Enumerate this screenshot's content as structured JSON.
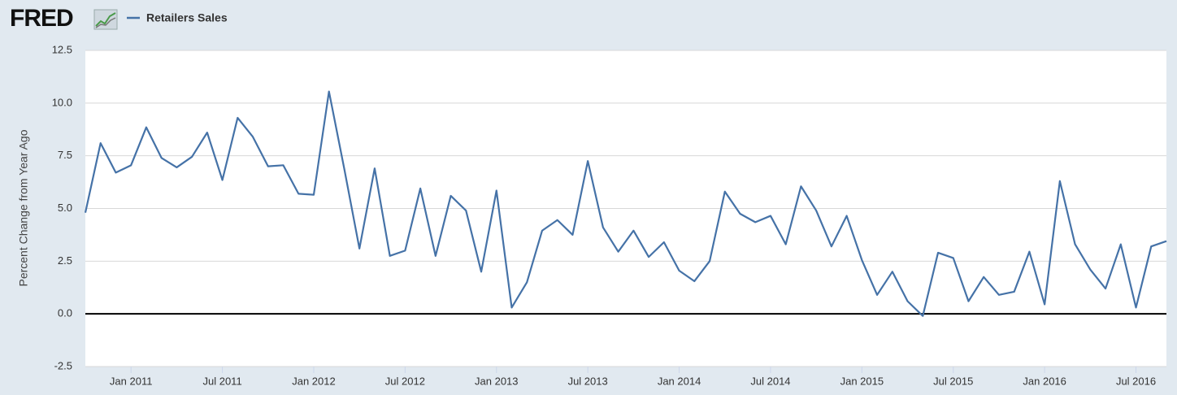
{
  "header": {
    "logo": "FRED"
  },
  "chart_data": {
    "type": "line",
    "y_label": "Percent Change from Year Ago",
    "x": [
      "2010-10",
      "2010-11",
      "2010-12",
      "2011-01",
      "2011-02",
      "2011-03",
      "2011-04",
      "2011-05",
      "2011-06",
      "2011-07",
      "2011-08",
      "2011-09",
      "2011-10",
      "2011-11",
      "2011-12",
      "2012-01",
      "2012-02",
      "2012-03",
      "2012-04",
      "2012-05",
      "2012-06",
      "2012-07",
      "2012-08",
      "2012-09",
      "2012-10",
      "2012-11",
      "2012-12",
      "2013-01",
      "2013-02",
      "2013-03",
      "2013-04",
      "2013-05",
      "2013-06",
      "2013-07",
      "2013-08",
      "2013-09",
      "2013-10",
      "2013-11",
      "2013-12",
      "2014-01",
      "2014-02",
      "2014-03",
      "2014-04",
      "2014-05",
      "2014-06",
      "2014-07",
      "2014-08",
      "2014-09",
      "2014-10",
      "2014-11",
      "2014-12",
      "2015-01",
      "2015-02",
      "2015-03",
      "2015-04",
      "2015-05",
      "2015-06",
      "2015-07",
      "2015-08",
      "2015-09",
      "2015-10",
      "2015-11",
      "2015-12",
      "2016-01",
      "2016-02",
      "2016-03",
      "2016-04",
      "2016-05",
      "2016-06",
      "2016-07",
      "2016-08",
      "2016-09"
    ],
    "series": [
      {
        "name": "Retailers Sales",
        "color": "#4572a7",
        "values": [
          4.8,
          8.1,
          6.7,
          7.05,
          8.85,
          7.4,
          6.95,
          7.45,
          8.6,
          6.35,
          9.3,
          8.4,
          7.0,
          7.05,
          5.7,
          5.65,
          10.55,
          6.9,
          3.1,
          6.9,
          2.75,
          3.0,
          5.95,
          2.75,
          5.6,
          4.9,
          2.0,
          5.85,
          0.3,
          1.5,
          3.95,
          4.45,
          3.75,
          7.25,
          4.1,
          2.95,
          3.95,
          2.7,
          3.4,
          2.05,
          1.55,
          2.5,
          5.8,
          4.75,
          4.35,
          4.65,
          3.3,
          6.05,
          4.9,
          3.2,
          4.65,
          2.55,
          0.9,
          2.0,
          0.6,
          -0.1,
          2.9,
          2.65,
          0.6,
          1.75,
          0.9,
          1.05,
          2.95,
          0.45,
          6.3,
          3.3,
          2.1,
          1.2,
          3.3,
          0.3,
          3.2,
          3.45
        ]
      }
    ],
    "xlim": [
      "2010-10",
      "2016-09"
    ],
    "xticks": [
      {
        "value": "2011-01",
        "label": "Jan 2011"
      },
      {
        "value": "2011-07",
        "label": "Jul 2011"
      },
      {
        "value": "2012-01",
        "label": "Jan 2012"
      },
      {
        "value": "2012-07",
        "label": "Jul 2012"
      },
      {
        "value": "2013-01",
        "label": "Jan 2013"
      },
      {
        "value": "2013-07",
        "label": "Jul 2013"
      },
      {
        "value": "2014-01",
        "label": "Jan 2014"
      },
      {
        "value": "2014-07",
        "label": "Jul 2014"
      },
      {
        "value": "2015-01",
        "label": "Jan 2015"
      },
      {
        "value": "2015-07",
        "label": "Jul 2015"
      },
      {
        "value": "2016-01",
        "label": "Jan 2016"
      },
      {
        "value": "2016-07",
        "label": "Jul 2016"
      }
    ],
    "ylim": [
      -2.5,
      12.5
    ],
    "yticks": [
      -2.5,
      {
        "value": 0,
        "label": "0.0"
      },
      2.5,
      {
        "value": 5,
        "label": "5.0"
      },
      7.5,
      {
        "value": 10,
        "label": "10.0"
      },
      12.5
    ],
    "grid": true,
    "zero_line": true
  }
}
